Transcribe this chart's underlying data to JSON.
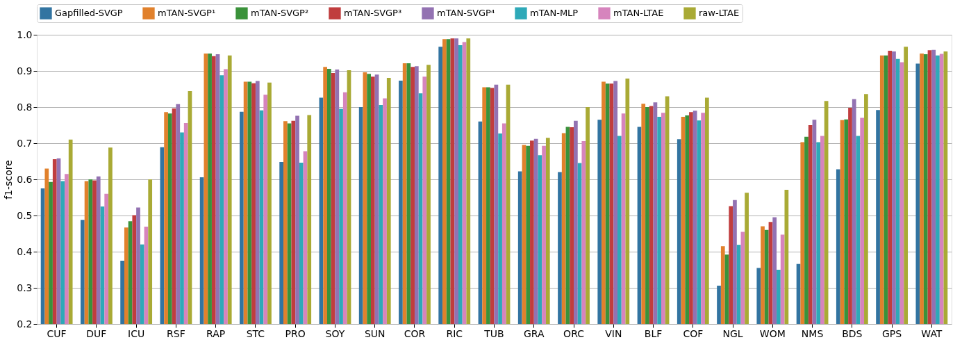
{
  "chart_data": {
    "type": "bar",
    "ylabel": "f1-score",
    "categories": [
      "CUF",
      "DUF",
      "ICU",
      "RSF",
      "RAP",
      "STC",
      "PRO",
      "SOY",
      "SUN",
      "COR",
      "RIC",
      "TUB",
      "GRA",
      "ORC",
      "VIN",
      "BLF",
      "COF",
      "NGL",
      "WOM",
      "NMS",
      "BDS",
      "GPS",
      "WAT"
    ],
    "series": [
      {
        "name": "Gapfilled-SVGP",
        "color": "#3274a1",
        "values": [
          0.575,
          0.488,
          0.375,
          0.689,
          0.606,
          0.787,
          0.648,
          0.826,
          0.8,
          0.873,
          0.967,
          0.76,
          0.622,
          0.62,
          0.765,
          0.745,
          0.711,
          0.306,
          0.355,
          0.366,
          0.628,
          0.792,
          0.92
        ]
      },
      {
        "name": "mTAN-SVGP¹",
        "color": "#e1812c",
        "values": [
          0.63,
          0.595,
          0.467,
          0.786,
          0.948,
          0.87,
          0.761,
          0.911,
          0.896,
          0.921,
          0.988,
          0.855,
          0.695,
          0.728,
          0.87,
          0.809,
          0.773,
          0.415,
          0.47,
          0.703,
          0.764,
          0.943,
          0.948
        ]
      },
      {
        "name": "mTAN-SVGP²",
        "color": "#3a923a",
        "values": [
          0.593,
          0.6,
          0.484,
          0.782,
          0.948,
          0.87,
          0.755,
          0.906,
          0.892,
          0.921,
          0.988,
          0.855,
          0.693,
          0.745,
          0.865,
          0.8,
          0.777,
          0.392,
          0.46,
          0.718,
          0.766,
          0.943,
          0.946
        ]
      },
      {
        "name": "mTAN-SVGP³",
        "color": "#c03d3e",
        "values": [
          0.656,
          0.597,
          0.501,
          0.796,
          0.941,
          0.866,
          0.762,
          0.894,
          0.884,
          0.911,
          0.99,
          0.853,
          0.707,
          0.744,
          0.865,
          0.803,
          0.786,
          0.526,
          0.482,
          0.75,
          0.798,
          0.956,
          0.957
        ]
      },
      {
        "name": "mTAN-SVGP⁴",
        "color": "#9372b2",
        "values": [
          0.658,
          0.608,
          0.522,
          0.808,
          0.946,
          0.872,
          0.776,
          0.904,
          0.89,
          0.913,
          0.99,
          0.862,
          0.712,
          0.762,
          0.872,
          0.813,
          0.79,
          0.543,
          0.495,
          0.765,
          0.822,
          0.954,
          0.958
        ]
      },
      {
        "name": "mTAN-MLP",
        "color": "#2ea9b8",
        "values": [
          0.595,
          0.525,
          0.42,
          0.73,
          0.888,
          0.791,
          0.646,
          0.795,
          0.806,
          0.838,
          0.971,
          0.727,
          0.667,
          0.645,
          0.72,
          0.773,
          0.763,
          0.419,
          0.35,
          0.703,
          0.72,
          0.933,
          0.943
        ]
      },
      {
        "name": "mTAN-LTAE",
        "color": "#d684bd",
        "values": [
          0.615,
          0.56,
          0.469,
          0.756,
          0.905,
          0.834,
          0.678,
          0.841,
          0.824,
          0.884,
          0.98,
          0.755,
          0.693,
          0.706,
          0.782,
          0.784,
          0.784,
          0.455,
          0.447,
          0.72,
          0.77,
          0.924,
          0.947
        ]
      },
      {
        "name": "raw-LTAE",
        "color": "#a9aa35",
        "values": [
          0.71,
          0.688,
          0.6,
          0.844,
          0.943,
          0.868,
          0.778,
          0.902,
          0.881,
          0.917,
          0.99,
          0.862,
          0.715,
          0.8,
          0.879,
          0.83,
          0.826,
          0.563,
          0.571,
          0.817,
          0.836,
          0.967,
          0.954
        ]
      }
    ],
    "ylim": [
      0.2,
      1.0
    ],
    "yticks": [
      {
        "value": 0.2,
        "label": "0.2"
      },
      {
        "value": 0.3,
        "label": "0.3"
      },
      {
        "value": 0.4,
        "label": "0.4"
      },
      {
        "value": 0.5,
        "label": "0.5"
      },
      {
        "value": 0.6,
        "label": "0.6"
      },
      {
        "value": 0.7,
        "label": "0.7"
      },
      {
        "value": 0.8,
        "label": "0.8"
      },
      {
        "value": 0.9,
        "label": "0.9"
      },
      {
        "value": 1.0,
        "label": "1.0"
      }
    ],
    "grid": "y",
    "legend": "top"
  }
}
